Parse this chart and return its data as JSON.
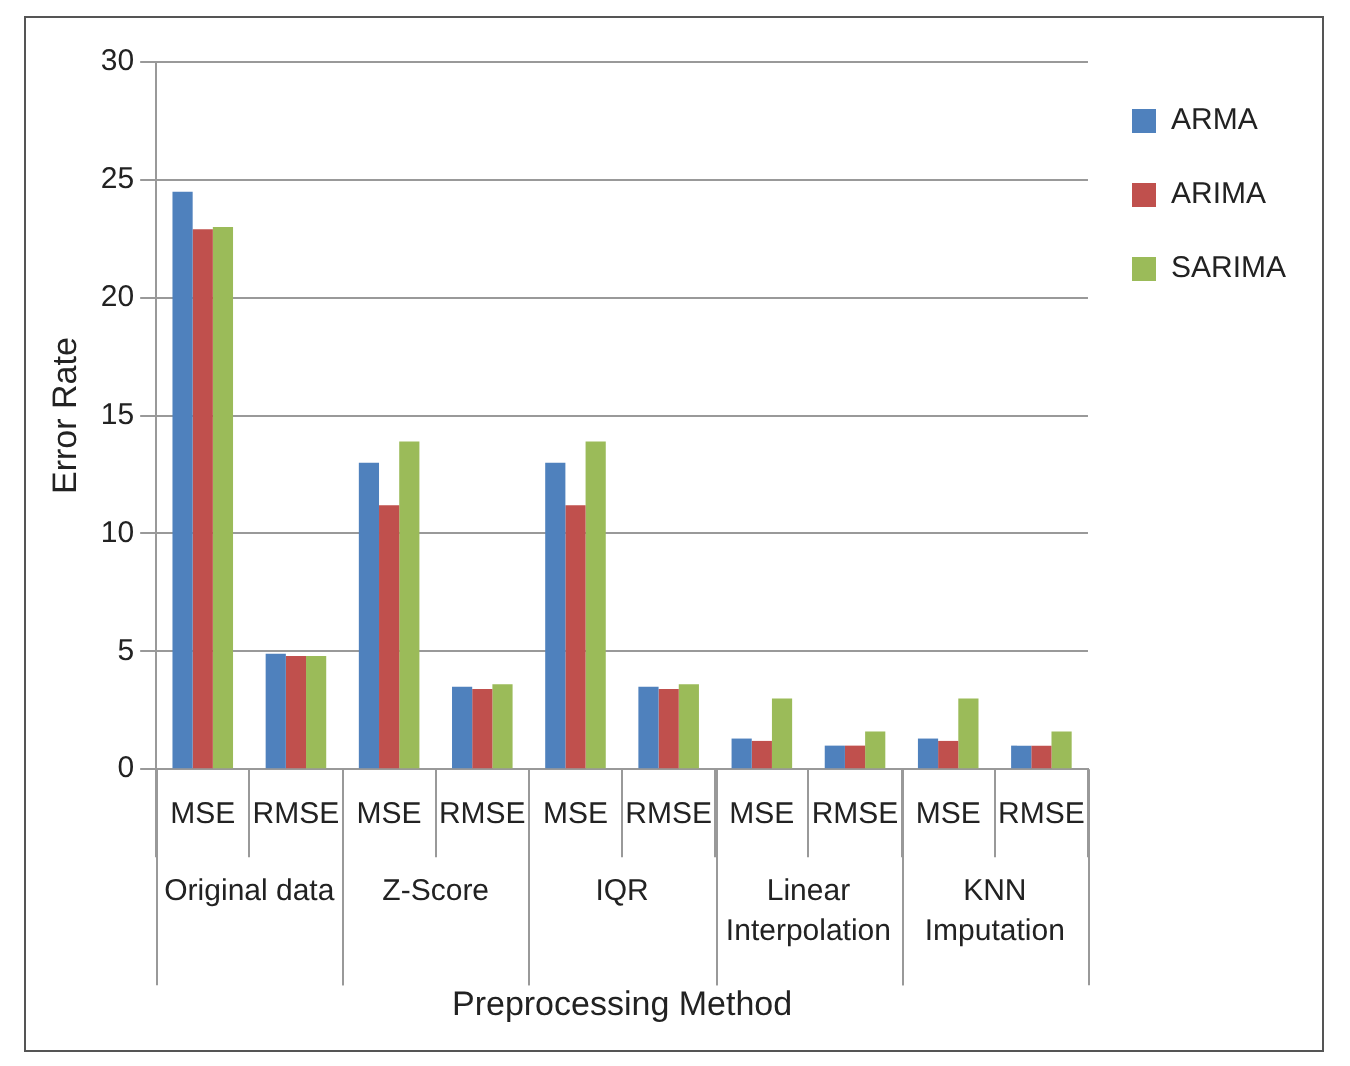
{
  "chart_data": {
    "type": "bar",
    "xlabel": "Preprocessing Method",
    "ylabel": "Error Rate",
    "categories": [
      "MSE",
      "RMSE",
      "MSE",
      "RMSE",
      "MSE",
      "RMSE",
      "MSE",
      "RMSE",
      "MSE",
      "RMSE"
    ],
    "series": [
      {
        "name": "ARMA",
        "color": "#4f81bd",
        "values": [
          24.5,
          4.9,
          13.0,
          3.5,
          13.0,
          3.5,
          1.3,
          1.0,
          1.3,
          1.0
        ]
      },
      {
        "name": "ARIMA",
        "color": "#c0504d",
        "values": [
          22.9,
          4.8,
          11.2,
          3.4,
          11.2,
          3.4,
          1.2,
          1.0,
          1.2,
          1.0
        ]
      },
      {
        "name": "SARIMA",
        "color": "#9bbb59",
        "values": [
          23.0,
          4.8,
          13.9,
          3.6,
          13.9,
          3.6,
          3.0,
          1.6,
          3.0,
          1.6
        ]
      }
    ],
    "annotations": [
      "Original data",
      "Z-Score",
      "IQR",
      "Linear Interpolation",
      "KNN Imputation"
    ],
    "ylim": [
      0,
      30
    ],
    "yticks": [
      0,
      5,
      10,
      15,
      20,
      25,
      30
    ],
    "grid": "y",
    "legend": "top right"
  }
}
